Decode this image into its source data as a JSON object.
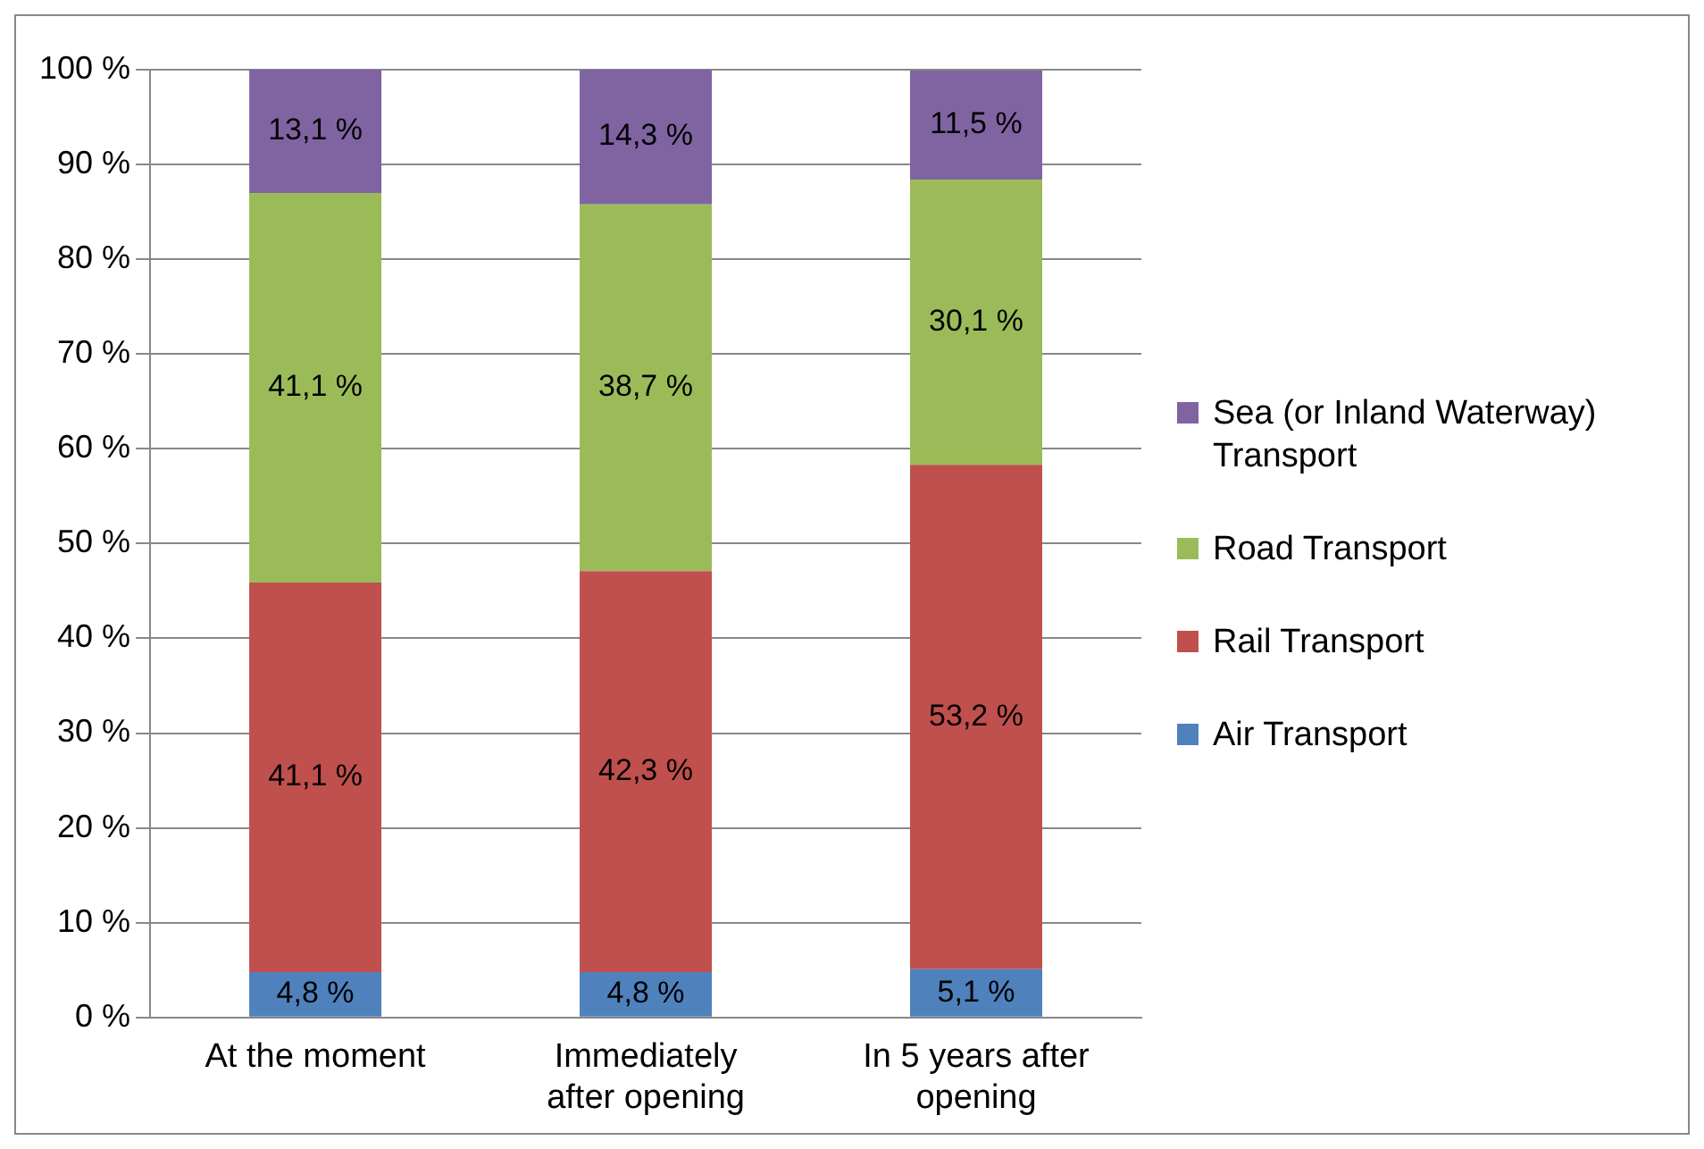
{
  "chart_data": {
    "type": "bar",
    "stacked": true,
    "categories": [
      "At the moment",
      "Immediately after opening",
      "In 5 years after opening"
    ],
    "series": [
      {
        "name": "Air Transport",
        "color": "#4f81bd",
        "values": [
          4.8,
          4.8,
          5.1
        ],
        "value_labels": [
          "4,8 %",
          "4,8 %",
          "5,1 %"
        ]
      },
      {
        "name": "Rail Transport",
        "color": "#c0504d",
        "values": [
          41.1,
          42.3,
          53.2
        ],
        "value_labels": [
          "41,1 %",
          "42,3 %",
          "53,2 %"
        ]
      },
      {
        "name": "Road Transport",
        "color": "#9bbb59",
        "values": [
          41.1,
          38.7,
          30.1
        ],
        "value_labels": [
          "41,1 %",
          "38,7 %",
          "30,1 %"
        ]
      },
      {
        "name": "Sea (or Inland Waterway) Transport",
        "color": "#8064a2",
        "values": [
          13.1,
          14.3,
          11.5
        ],
        "value_labels": [
          "13,1 %",
          "14,3 %",
          "11,5 %"
        ]
      }
    ],
    "ylim": [
      0,
      100
    ],
    "yticks": [
      {
        "value": 0,
        "label": "0 %"
      },
      {
        "value": 10,
        "label": "10 %"
      },
      {
        "value": 20,
        "label": "20 %"
      },
      {
        "value": 30,
        "label": "30 %"
      },
      {
        "value": 40,
        "label": "40 %"
      },
      {
        "value": 50,
        "label": "50 %"
      },
      {
        "value": 60,
        "label": "60 %"
      },
      {
        "value": 70,
        "label": "70 %"
      },
      {
        "value": 80,
        "label": "80 %"
      },
      {
        "value": 90,
        "label": "90 %"
      },
      {
        "value": 100,
        "label": "100 %"
      }
    ],
    "grid": "y",
    "legend": "right"
  }
}
